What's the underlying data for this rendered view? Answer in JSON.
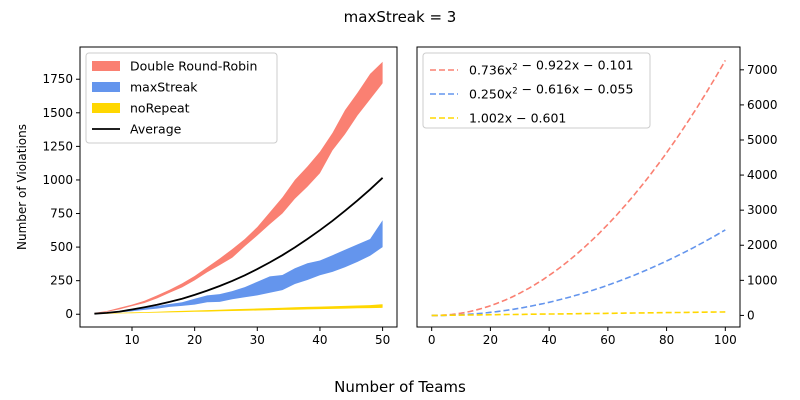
{
  "suptitle": "maxStreak = 3",
  "supxlabel": "Number of Teams",
  "colors": {
    "drr": "#fa8072",
    "maxstreak": "#6495ed",
    "norepeat": "#ffd700",
    "average": "#000000"
  },
  "chart_data": [
    {
      "type": "area",
      "ylabel": "Number of Violations",
      "xlim": [
        1.7,
        52.3
      ],
      "ylim": [
        -95,
        1990
      ],
      "xticks": [
        10,
        20,
        30,
        40,
        50
      ],
      "yticks": [
        0,
        250,
        500,
        750,
        1000,
        1250,
        1500,
        1750
      ],
      "legend_position": "top-left",
      "x": [
        4,
        6,
        8,
        10,
        12,
        14,
        16,
        18,
        20,
        22,
        24,
        26,
        28,
        30,
        32,
        34,
        36,
        38,
        40,
        42,
        44,
        46,
        48,
        50
      ],
      "series": [
        {
          "name": "Double Round-Robin",
          "kind": "band",
          "lower": [
            6,
            19,
            36,
            61,
            84,
            118,
            160,
            200,
            252,
            312,
            366,
            420,
            506,
            586,
            670,
            750,
            860,
            950,
            1050,
            1220,
            1340,
            1480,
            1600,
            1720
          ],
          "upper": [
            10,
            24,
            48,
            72,
            100,
            140,
            182,
            230,
            285,
            350,
            415,
            485,
            560,
            650,
            760,
            870,
            1000,
            1100,
            1210,
            1350,
            1520,
            1650,
            1790,
            1880
          ]
        },
        {
          "name": "maxStreak",
          "kind": "band",
          "lower": [
            4,
            8,
            14,
            22,
            32,
            42,
            55,
            62,
            72,
            90,
            92,
            112,
            126,
            140,
            160,
            180,
            225,
            255,
            290,
            315,
            350,
            390,
            435,
            500
          ],
          "upper": [
            8,
            14,
            25,
            38,
            48,
            62,
            76,
            90,
            115,
            140,
            150,
            172,
            202,
            242,
            282,
            292,
            342,
            380,
            400,
            440,
            480,
            520,
            560,
            700
          ]
        },
        {
          "name": "noRepeat",
          "kind": "band",
          "lower": [
            3,
            4,
            6,
            8,
            10,
            12,
            14,
            16,
            18,
            20,
            22,
            24,
            26,
            28,
            30,
            32,
            34,
            36,
            38,
            40,
            42,
            44,
            46,
            48
          ],
          "upper": [
            5,
            7,
            10,
            14,
            16,
            19,
            22,
            25,
            28,
            31,
            34,
            37,
            40,
            43,
            46,
            49,
            52,
            55,
            57,
            59,
            62,
            65,
            68,
            75
          ]
        },
        {
          "name": "Average",
          "kind": "line",
          "values": [
            4,
            10,
            20,
            35,
            52,
            70,
            92,
            116,
            144,
            176,
            210,
            248,
            290,
            336,
            386,
            440,
            498,
            560,
            626,
            696,
            770,
            848,
            930,
            1016
          ]
        }
      ]
    },
    {
      "type": "line",
      "xlim": [
        -5,
        105
      ],
      "ylim": [
        -330,
        7650
      ],
      "xticks": [
        0,
        20,
        40,
        60,
        80,
        100
      ],
      "yticks": [
        0,
        1000,
        2000,
        3000,
        4000,
        5000,
        6000,
        7000
      ],
      "y_axis_side": "right",
      "legend_position": "top-left",
      "series": [
        {
          "name": "0.736x² − 0.922x − 0.101",
          "coefficients": [
            0.736,
            -0.922,
            -0.101
          ],
          "x_range": [
            0,
            100
          ],
          "style": "dashed"
        },
        {
          "name": "0.250x² − 0.616x − 0.055",
          "coefficients": [
            0.25,
            -0.616,
            -0.055
          ],
          "x_range": [
            0,
            100
          ],
          "style": "dashed"
        },
        {
          "name": "1.002x − 0.601",
          "coefficients": [
            0,
            1.002,
            -0.601
          ],
          "x_range": [
            0,
            100
          ],
          "style": "dashed"
        }
      ]
    }
  ]
}
